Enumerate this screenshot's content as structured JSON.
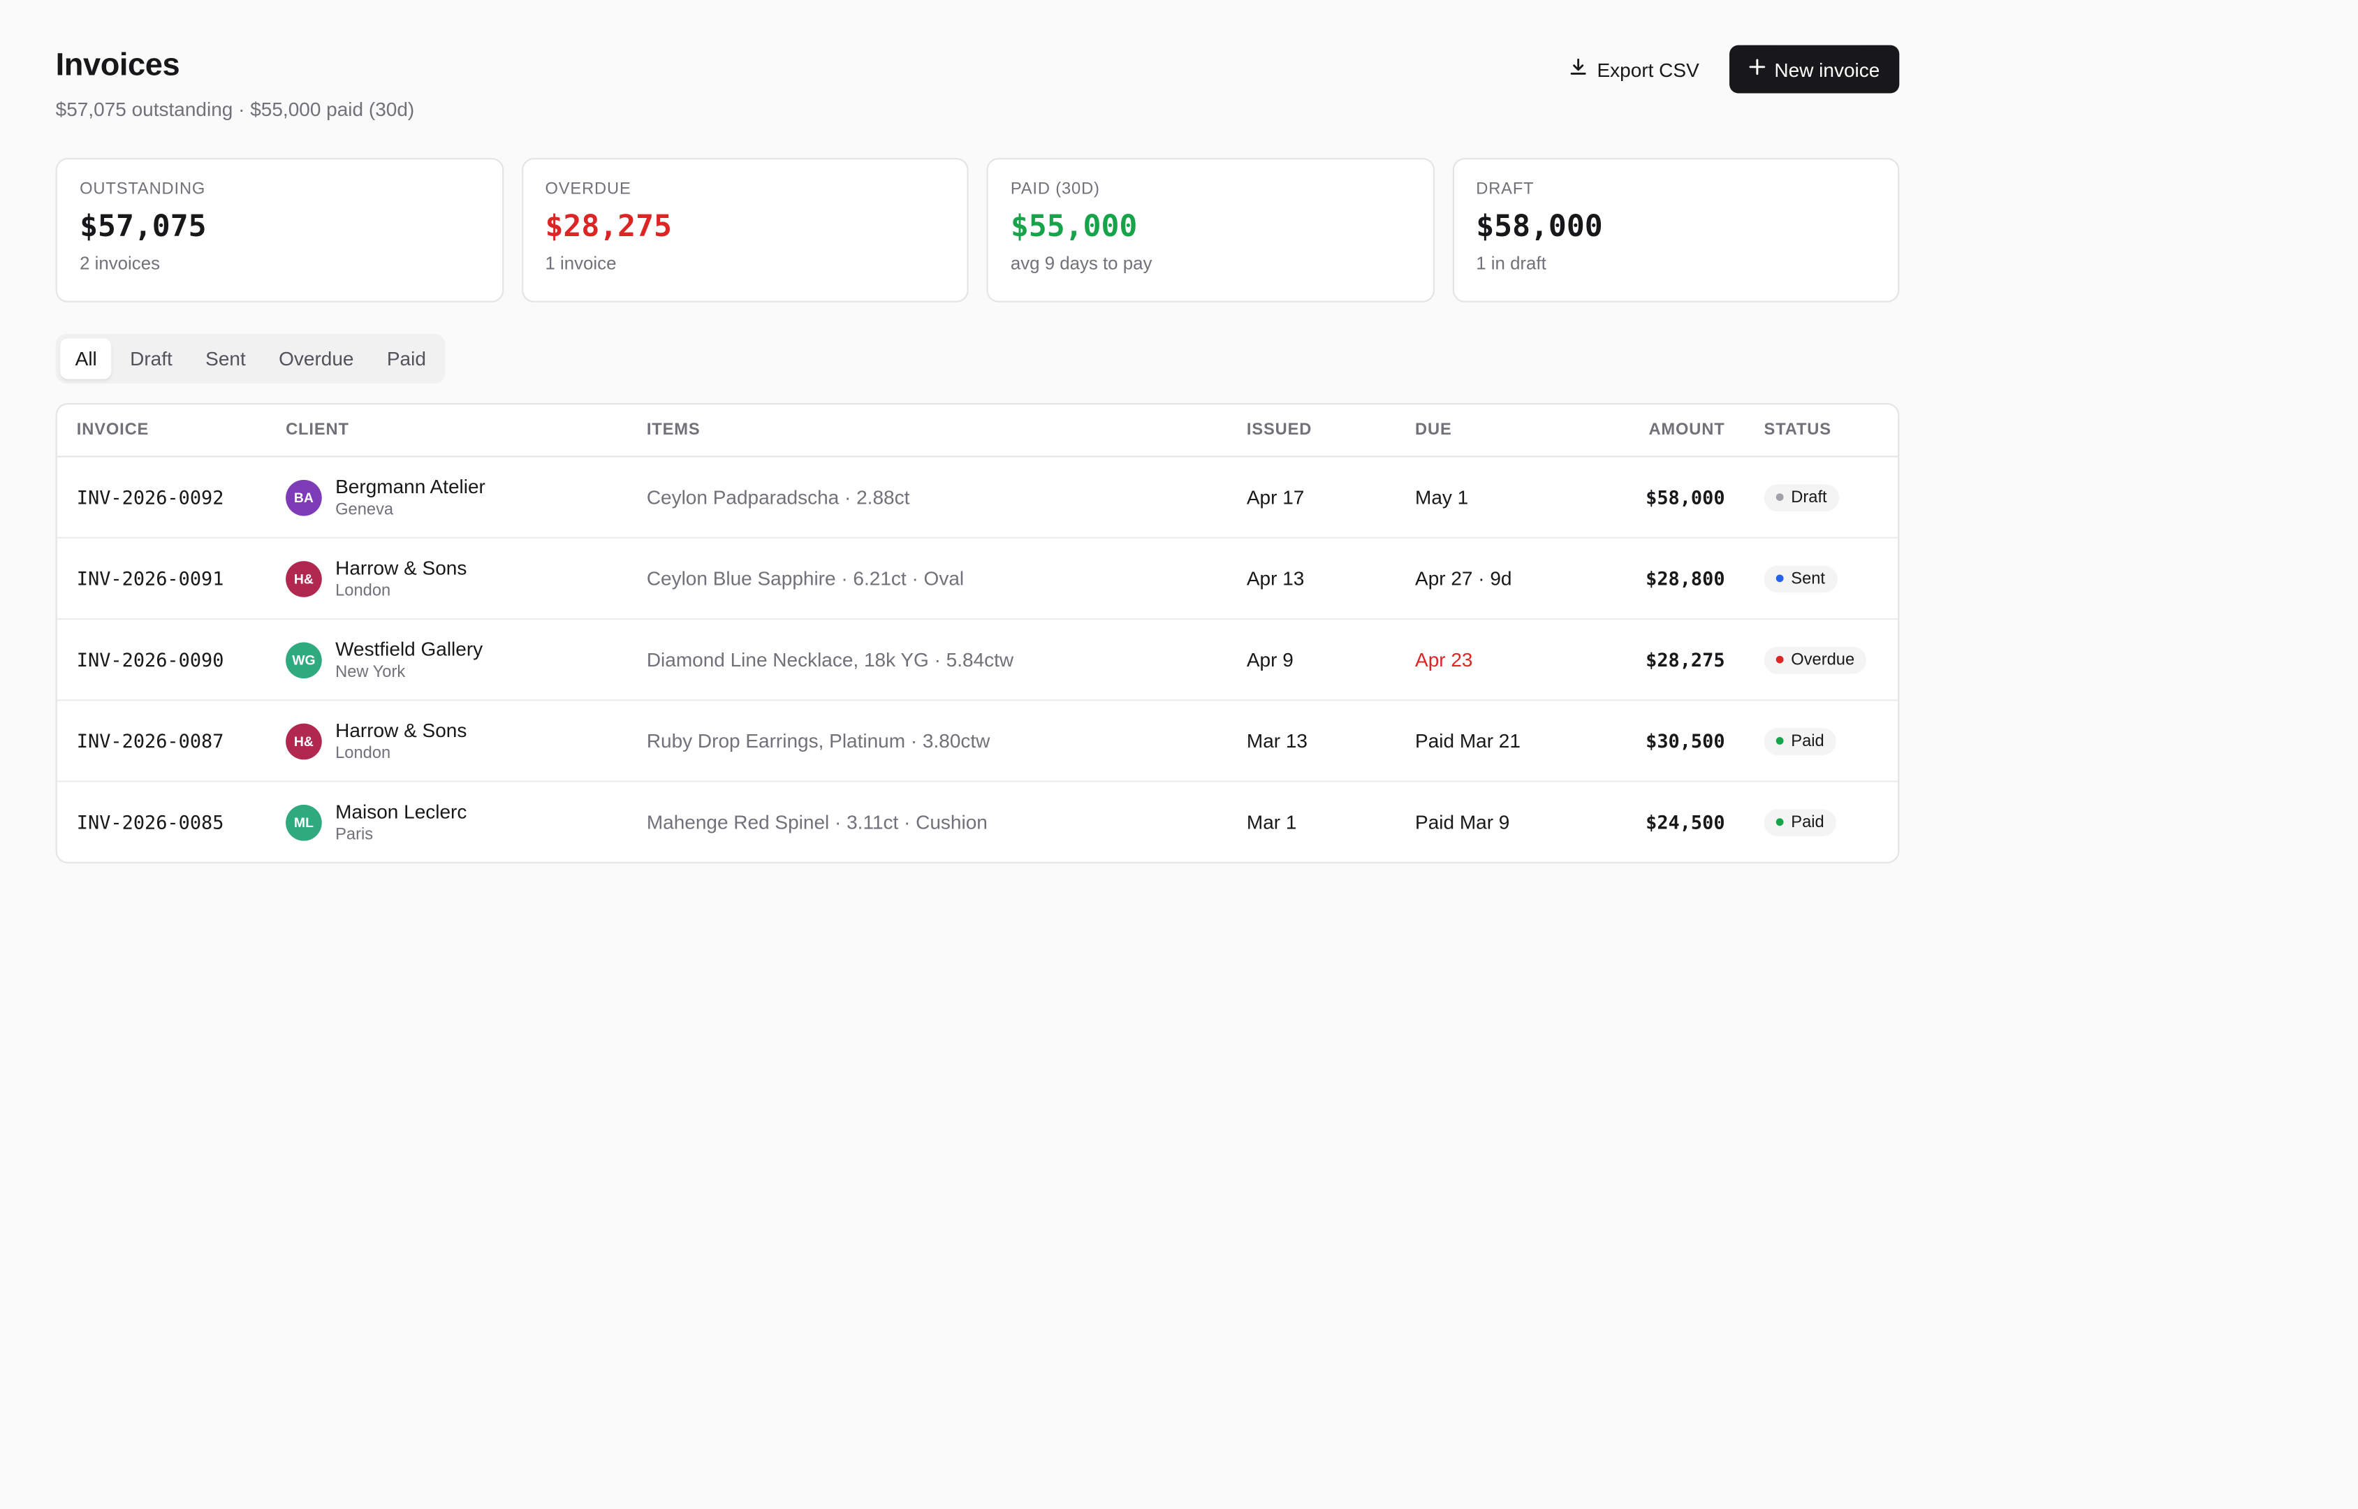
{
  "header": {
    "title": "Invoices",
    "subtitle": "$57,075 outstanding · $55,000 paid (30d)",
    "export_label": "Export CSV",
    "new_label": "New invoice"
  },
  "cards": [
    {
      "label": "OUTSTANDING",
      "value": "$57,075",
      "sub": "2 invoices",
      "color": "#18181b"
    },
    {
      "label": "OVERDUE",
      "value": "$28,275",
      "sub": "1 invoice",
      "color": "#dc2626"
    },
    {
      "label": "PAID (30D)",
      "value": "$55,000",
      "sub": "avg 9 days to pay",
      "color": "#16a34a"
    },
    {
      "label": "DRAFT",
      "value": "$58,000",
      "sub": "1 in draft",
      "color": "#18181b"
    }
  ],
  "tabs": [
    "All",
    "Draft",
    "Sent",
    "Overdue",
    "Paid"
  ],
  "active_tab": "All",
  "table": {
    "headers": {
      "invoice": "INVOICE",
      "client": "CLIENT",
      "items": "ITEMS",
      "issued": "ISSUED",
      "due": "DUE",
      "amount": "AMOUNT",
      "status": "STATUS"
    },
    "rows": [
      {
        "invoice": "INV-2026-0092",
        "initials": "BA",
        "avatar_color": "#7e3bb8",
        "client": "Bergmann Atelier",
        "city": "Geneva",
        "items": "Ceylon Padparadscha · 2.88ct",
        "issued": "Apr 17",
        "due": "May 1",
        "due_color": "#18181b",
        "amount": "$58,000",
        "status": "Draft",
        "status_color": "#a1a1aa"
      },
      {
        "invoice": "INV-2026-0091",
        "initials": "H&",
        "avatar_color": "#b0284f",
        "client": "Harrow & Sons",
        "city": "London",
        "items": "Ceylon Blue Sapphire · 6.21ct · Oval",
        "issued": "Apr 13",
        "due": "Apr 27 · 9d",
        "due_color": "#18181b",
        "amount": "$28,800",
        "status": "Sent",
        "status_color": "#2563eb"
      },
      {
        "invoice": "INV-2026-0090",
        "initials": "WG",
        "avatar_color": "#2eaa7e",
        "client": "Westfield Gallery",
        "city": "New York",
        "items": "Diamond Line Necklace, 18k YG · 5.84ctw",
        "issued": "Apr 9",
        "due": "Apr 23",
        "due_color": "#dc2626",
        "amount": "$28,275",
        "status": "Overdue",
        "status_color": "#dc2626"
      },
      {
        "invoice": "INV-2026-0087",
        "initials": "H&",
        "avatar_color": "#b0284f",
        "client": "Harrow & Sons",
        "city": "London",
        "items": "Ruby Drop Earrings, Platinum · 3.80ctw",
        "issued": "Mar 13",
        "due": "Paid Mar 21",
        "due_color": "#18181b",
        "amount": "$30,500",
        "status": "Paid",
        "status_color": "#16a34a"
      },
      {
        "invoice": "INV-2026-0085",
        "initials": "ML",
        "avatar_color": "#2eaa7e",
        "client": "Maison Leclerc",
        "city": "Paris",
        "items": "Mahenge Red Spinel · 3.11ct · Cushion",
        "issued": "Mar 1",
        "due": "Paid Mar 9",
        "due_color": "#18181b",
        "amount": "$24,500",
        "status": "Paid",
        "status_color": "#16a34a"
      }
    ]
  },
  "icons": {
    "export": "download-icon",
    "new": "plus-icon"
  }
}
